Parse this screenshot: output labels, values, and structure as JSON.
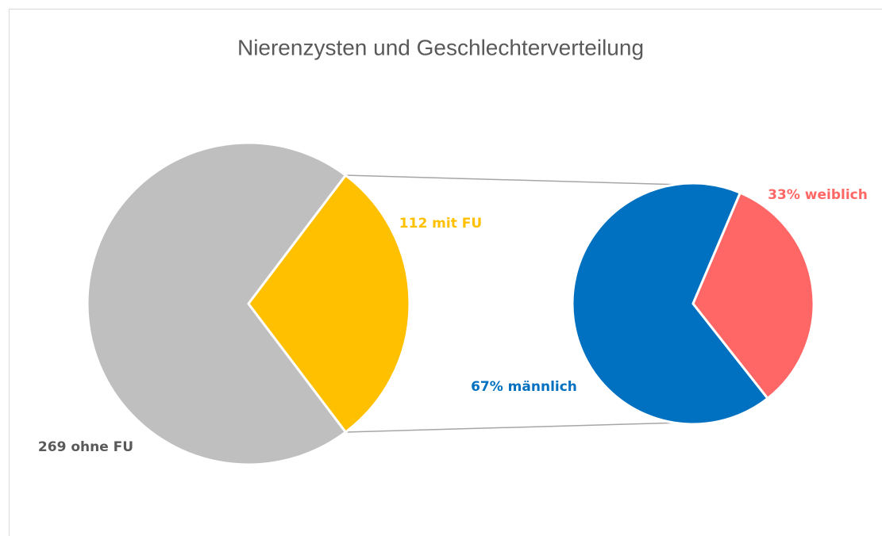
{
  "chart_data": [
    {
      "type": "pie",
      "title": "Nierenzysten und Geschlechterverteilung",
      "values": [
        269,
        112
      ],
      "value_labels": [
        "269 ohne FU",
        "112 mit FU"
      ],
      "colors": [
        "#bfbfbf",
        "#ffc000"
      ],
      "label_colors": [
        "#595959",
        "#ffc000"
      ]
    },
    {
      "type": "pie",
      "values": [
        67,
        33
      ],
      "value_labels": [
        "67% männlich",
        "33% weiblich"
      ],
      "colors": [
        "#0070c0",
        "#ff6666"
      ],
      "label_colors": [
        "#0070c0",
        "#ff6666"
      ]
    }
  ]
}
